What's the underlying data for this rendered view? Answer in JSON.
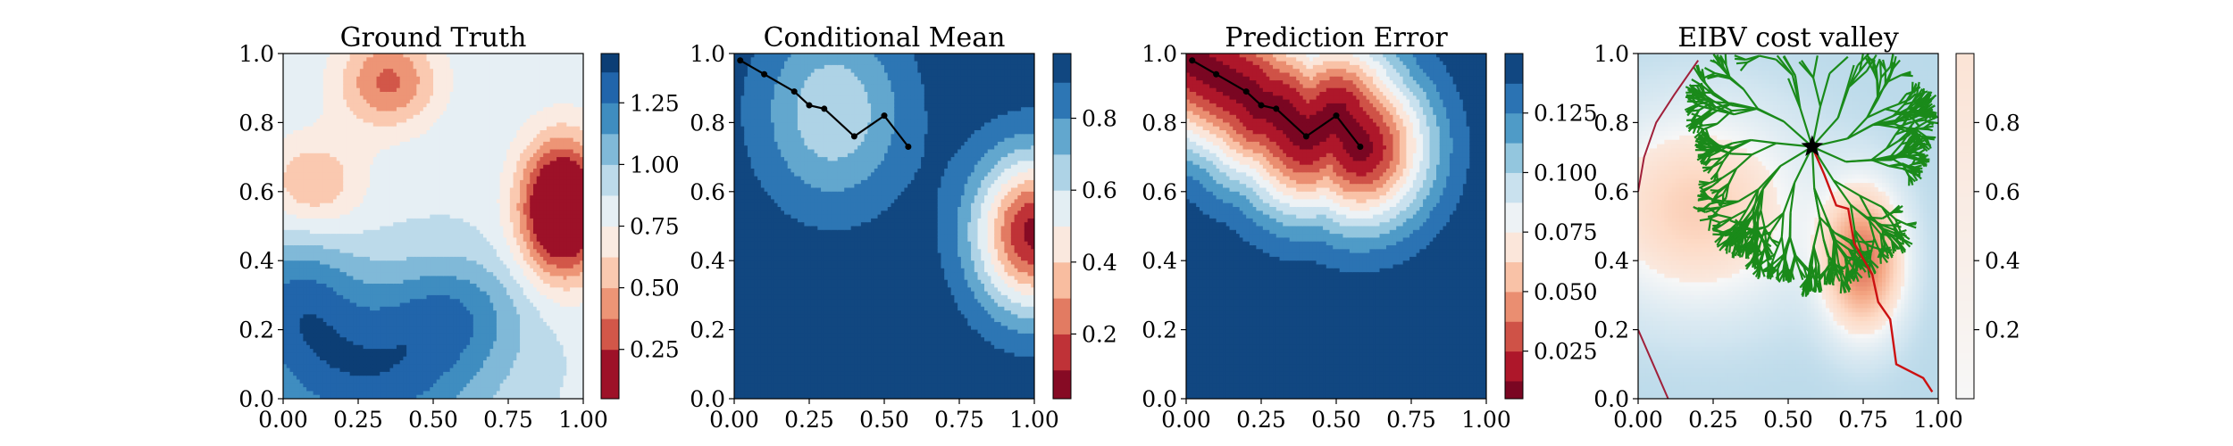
{
  "figure": {
    "panels": [
      {
        "id": "ground-truth",
        "title": "Ground Truth",
        "xticks": [
          "0.00",
          "0.25",
          "0.50",
          "0.75",
          "1.00"
        ],
        "yticks": [
          "0.0",
          "0.2",
          "0.4",
          "0.6",
          "0.8",
          "1.0"
        ],
        "colorbar_ticks": [
          "0.25",
          "0.50",
          "0.75",
          "1.00",
          "1.25"
        ]
      },
      {
        "id": "conditional-mean",
        "title": "Conditional Mean",
        "xticks": [
          "0.00",
          "0.25",
          "0.50",
          "0.75",
          "1.00"
        ],
        "yticks": [
          "0.0",
          "0.2",
          "0.4",
          "0.6",
          "0.8",
          "1.0"
        ],
        "colorbar_ticks": [
          "0.2",
          "0.4",
          "0.6",
          "0.8"
        ]
      },
      {
        "id": "prediction-error",
        "title": "Prediction Error",
        "xticks": [
          "0.00",
          "0.25",
          "0.50",
          "0.75",
          "1.00"
        ],
        "yticks": [
          "0.0",
          "0.2",
          "0.4",
          "0.6",
          "0.8",
          "1.0"
        ],
        "colorbar_ticks": [
          "0.025",
          "0.050",
          "0.075",
          "0.100",
          "0.125"
        ]
      },
      {
        "id": "eibv-cost-valley",
        "title": "EIBV cost valley",
        "xticks": [
          "0.00",
          "0.25",
          "0.50",
          "0.75",
          "1.00"
        ],
        "yticks": [
          "0.0",
          "0.2",
          "0.4",
          "0.6",
          "0.8",
          "1.0"
        ],
        "colorbar_ticks": [
          "0.2",
          "0.4",
          "0.6",
          "0.8"
        ]
      }
    ]
  },
  "chart_data": [
    {
      "type": "heatmap",
      "title": "Ground Truth",
      "xlim": [
        0,
        1
      ],
      "ylim": [
        0,
        1
      ],
      "colormap": "RdBu",
      "color_range": [
        0.05,
        1.45
      ],
      "levels": [
        0.05,
        0.25,
        0.375,
        0.5,
        0.625,
        0.75,
        0.875,
        1.0,
        1.125,
        1.25,
        1.375,
        1.45
      ],
      "colorbar_ticks": [
        0.25,
        0.5,
        0.75,
        1.0,
        1.25
      ],
      "field_blobs": [
        {
          "x": 0.93,
          "y": 0.55,
          "sx": 0.1,
          "sy": 0.14,
          "amp": -1.05
        },
        {
          "x": 0.35,
          "y": 0.92,
          "sx": 0.12,
          "sy": 0.1,
          "amp": -0.5
        },
        {
          "x": 0.1,
          "y": 0.62,
          "sx": 0.12,
          "sy": 0.1,
          "amp": -0.35
        },
        {
          "x": 0.3,
          "y": 0.05,
          "sx": 0.25,
          "sy": 0.15,
          "amp": 0.45
        },
        {
          "x": 0.05,
          "y": 0.28,
          "sx": 0.15,
          "sy": 0.15,
          "amp": 0.4
        },
        {
          "x": 0.55,
          "y": 0.25,
          "sx": 0.18,
          "sy": 0.12,
          "amp": 0.35
        }
      ],
      "field_base": 0.85
    },
    {
      "type": "heatmap",
      "title": "Conditional Mean",
      "xlim": [
        0,
        1
      ],
      "ylim": [
        0,
        1
      ],
      "colormap": "RdBu",
      "color_range": [
        0.02,
        0.98
      ],
      "levels": [
        0.02,
        0.1,
        0.2,
        0.3,
        0.4,
        0.5,
        0.6,
        0.7,
        0.8,
        0.9,
        0.98
      ],
      "colorbar_ticks": [
        0.2,
        0.4,
        0.6,
        0.8
      ],
      "field_blobs": [
        {
          "x": 1.0,
          "y": 0.48,
          "sx": 0.14,
          "sy": 0.16,
          "amp": -0.9
        },
        {
          "x": 0.33,
          "y": 0.83,
          "sx": 0.17,
          "sy": 0.19,
          "amp": -0.35
        }
      ],
      "field_base": 0.97,
      "path": {
        "x": [
          0.02,
          0.1,
          0.2,
          0.25,
          0.3,
          0.4,
          0.5,
          0.58
        ],
        "y": [
          0.98,
          0.94,
          0.89,
          0.85,
          0.84,
          0.76,
          0.82,
          0.73
        ]
      }
    },
    {
      "type": "heatmap",
      "title": "Prediction Error",
      "xlim": [
        0,
        1
      ],
      "ylim": [
        0,
        1
      ],
      "colormap": "RdBu",
      "color_range": [
        0.005,
        0.15
      ],
      "levels": [
        0.005,
        0.0125,
        0.025,
        0.0375,
        0.05,
        0.0625,
        0.075,
        0.0875,
        0.1,
        0.1125,
        0.125,
        0.1375,
        0.15
      ],
      "colorbar_ticks": [
        0.025,
        0.05,
        0.075,
        0.1,
        0.125
      ],
      "path": {
        "x": [
          0.02,
          0.1,
          0.2,
          0.25,
          0.3,
          0.4,
          0.5,
          0.58
        ],
        "y": [
          0.98,
          0.94,
          0.89,
          0.85,
          0.84,
          0.76,
          0.82,
          0.73
        ]
      }
    },
    {
      "type": "heatmap",
      "title": "EIBV cost valley",
      "xlim": [
        0,
        1
      ],
      "ylim": [
        0,
        1
      ],
      "colormap": "RdBu",
      "color_range": [
        0.0,
        1.0
      ],
      "colorbar_ticks": [
        0.2,
        0.4,
        0.6,
        0.8
      ],
      "current_location": {
        "x": 0.58,
        "y": 0.73
      },
      "red_path": {
        "x": [
          0.58,
          0.62,
          0.66,
          0.7,
          0.72,
          0.78,
          0.8,
          0.84,
          0.86,
          0.95,
          0.98
        ],
        "y": [
          0.73,
          0.65,
          0.56,
          0.55,
          0.45,
          0.36,
          0.28,
          0.23,
          0.1,
          0.06,
          0.02
        ]
      },
      "boundary_curve": {
        "x": [
          0.0,
          0.02,
          0.06,
          0.12,
          0.2
        ],
        "y": [
          0.6,
          0.7,
          0.8,
          0.88,
          0.98
        ]
      },
      "boundary_curve_low": {
        "x": [
          0.0,
          0.05,
          0.1
        ],
        "y": [
          0.2,
          0.1,
          0.0
        ]
      }
    }
  ]
}
